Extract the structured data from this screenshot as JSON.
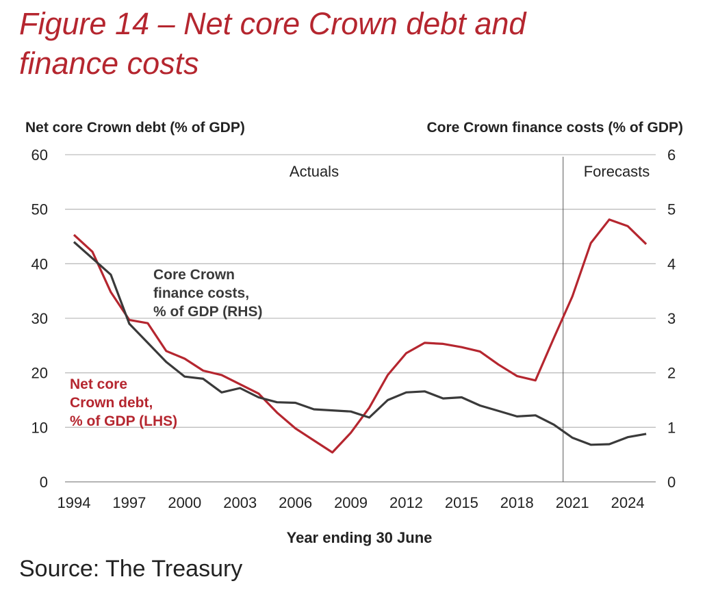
{
  "chart_data": {
    "type": "line",
    "title_lines": [
      "Figure 14 – Net core Crown debt and",
      "finance costs"
    ],
    "ylabel_left": "Net core Crown debt (% of GDP)",
    "ylabel_right": "Core Crown finance costs (% of GDP)",
    "xlabel": "Year ending 30 June",
    "ylim_left": [
      0,
      60
    ],
    "ylim_right": [
      0,
      6
    ],
    "yticks_left": [
      "0",
      "10",
      "20",
      "30",
      "40",
      "50",
      "60"
    ],
    "yticks_right": [
      "0",
      "1",
      "2",
      "3",
      "4",
      "5",
      "6"
    ],
    "xticks": [
      "1994",
      "1997",
      "2000",
      "2003",
      "2006",
      "2009",
      "2012",
      "2015",
      "2018",
      "2021",
      "2024"
    ],
    "grid": true,
    "x": [
      1994,
      1995,
      1996,
      1997,
      1998,
      1999,
      2000,
      2001,
      2002,
      2003,
      2004,
      2005,
      2006,
      2007,
      2008,
      2009,
      2010,
      2011,
      2012,
      2013,
      2014,
      2015,
      2016,
      2017,
      2018,
      2019,
      2020,
      2021,
      2022,
      2023,
      2024,
      2025
    ],
    "series": [
      {
        "name": "Net core Crown debt, % of GDP (LHS)",
        "label_lines": [
          "Net core",
          "Crown debt,",
          "% of GDP (LHS)"
        ],
        "axis": "left",
        "color": "#b5262f",
        "values": [
          45.3,
          42.2,
          34.8,
          29.7,
          29.1,
          24.0,
          22.6,
          20.4,
          19.6,
          17.9,
          16.2,
          12.7,
          9.8,
          7.6,
          5.4,
          9.0,
          13.6,
          19.6,
          23.6,
          25.5,
          25.3,
          24.7,
          23.9,
          21.5,
          19.4,
          18.6,
          26.4,
          34.0,
          43.8,
          48.1,
          46.9,
          43.6
        ]
      },
      {
        "name": "Core Crown finance costs, % of GDP (RHS)",
        "label_lines": [
          "Core Crown",
          "finance costs,",
          "% of GDP (RHS)"
        ],
        "axis": "right",
        "color": "#3a3a3a",
        "values": [
          4.4,
          4.1,
          3.8,
          2.9,
          2.55,
          2.2,
          1.93,
          1.89,
          1.64,
          1.72,
          1.55,
          1.46,
          1.45,
          1.33,
          1.31,
          1.29,
          1.18,
          1.5,
          1.64,
          1.66,
          1.53,
          1.55,
          1.4,
          1.3,
          1.2,
          1.22,
          1.05,
          0.81,
          0.68,
          0.69,
          0.82,
          0.88
        ]
      }
    ],
    "annotations": {
      "actuals": "Actuals",
      "forecasts": "Forecasts",
      "forecast_divider_year": 2020.5
    }
  },
  "source": "Source: The Treasury"
}
